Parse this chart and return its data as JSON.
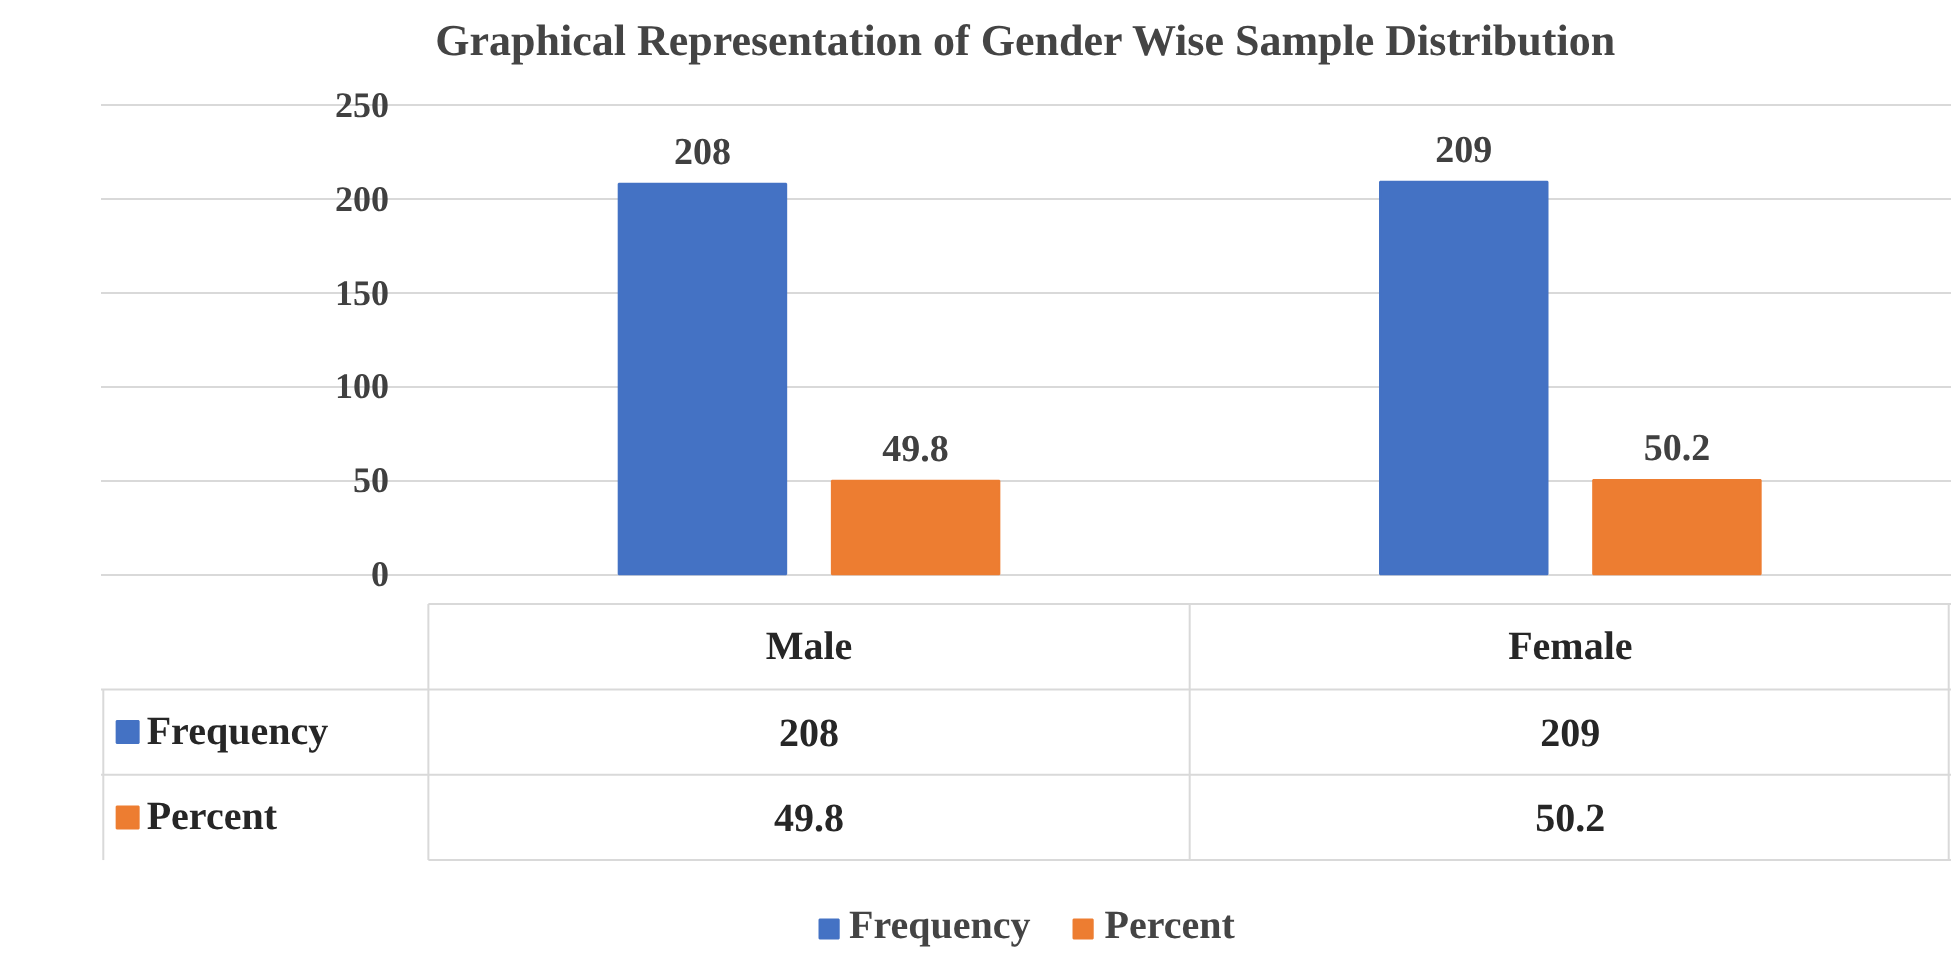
{
  "chart_data": {
    "type": "bar",
    "title": "Graphical Representation of Gender Wise Sample Distribution",
    "categories": [
      "Male",
      "Female"
    ],
    "series": [
      {
        "name": "Frequency",
        "color": "#4472c4",
        "values": [
          208,
          209
        ],
        "value_labels": [
          "208",
          "209"
        ]
      },
      {
        "name": "Percent",
        "color": "#ed7d31",
        "values": [
          49.8,
          50.2
        ],
        "value_labels": [
          "49.8",
          "50.2"
        ]
      }
    ],
    "ylim": [
      0,
      250
    ],
    "yticks": [
      0,
      50,
      100,
      150,
      200,
      250
    ],
    "grid": "y",
    "legend": "bottom",
    "annotations": [
      "208",
      "209",
      "49.8",
      "50.2"
    ]
  }
}
